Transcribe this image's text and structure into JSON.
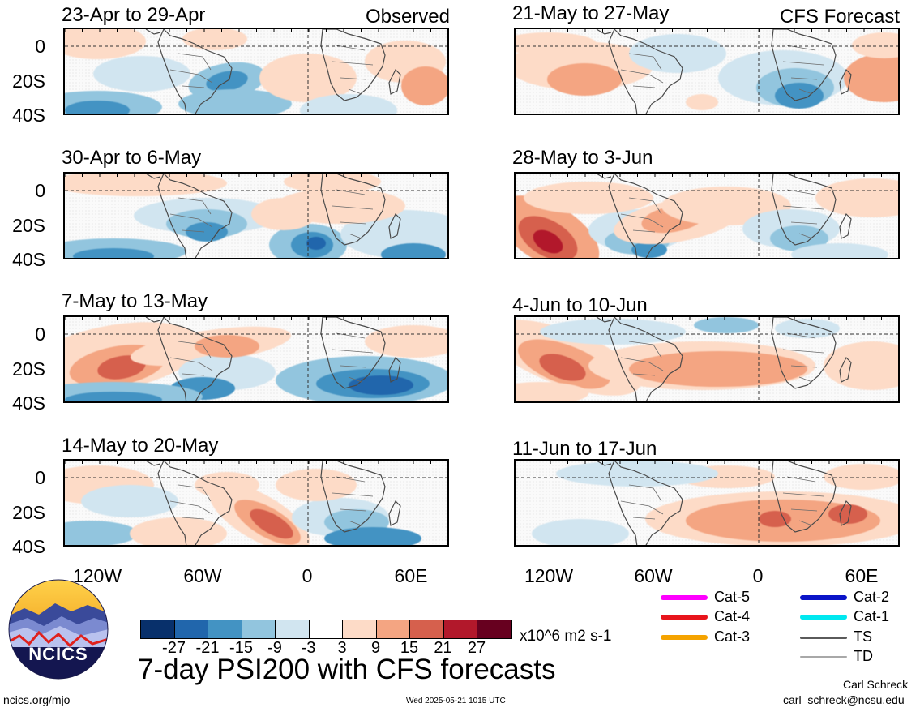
{
  "panels": {
    "p0": {
      "title": "23-Apr to 29-Apr",
      "badge": "Observed"
    },
    "p1": {
      "title": "30-Apr to 6-May"
    },
    "p2": {
      "title": "7-May to 13-May"
    },
    "p3": {
      "title": "14-May to 20-May"
    },
    "p4": {
      "title": "21-May to 27-May",
      "badge": "CFS Forecast"
    },
    "p5": {
      "title": "28-May to 3-Jun"
    },
    "p6": {
      "title": "4-Jun to 10-Jun"
    },
    "p7": {
      "title": "11-Jun to 17-Jun"
    }
  },
  "axes": {
    "lat_labels": [
      "0",
      "20S",
      "40S"
    ],
    "lon_labels": [
      "120W",
      "60W",
      "0",
      "60E"
    ]
  },
  "colorbar": {
    "ticks": [
      "-27",
      "-21",
      "-15",
      "-9",
      "-3",
      "3",
      "9",
      "15",
      "21",
      "27"
    ],
    "colors": [
      "#08306b",
      "#2166ac",
      "#4393c3",
      "#92c5de",
      "#d1e5f0",
      "#ffffff",
      "#fddbc7",
      "#f4a582",
      "#d6604d",
      "#b2182b",
      "#67001f"
    ],
    "units": "x10^6 m2 s-1"
  },
  "storm_legend": {
    "items": [
      {
        "label": "Cat-5",
        "color": "#ff00ff"
      },
      {
        "label": "Cat-4",
        "color": "#e8141c"
      },
      {
        "label": "Cat-3",
        "color": "#f5a300"
      },
      {
        "label": "Cat-2",
        "color": "#0a14c8"
      },
      {
        "label": "Cat-1",
        "color": "#00e8f0"
      },
      {
        "label": "TS",
        "color": "#5a5a5a"
      },
      {
        "label": "TD",
        "color": "#a8a8a8"
      }
    ]
  },
  "logo": {
    "text": "NCICS"
  },
  "footer": {
    "title": "7-day PSI200 with CFS forecasts",
    "url": "ncics.org/mjo",
    "timestamp": "Wed 2025-05-21 1015 UTC",
    "author": "Carl Schreck",
    "email": "carl_schreck@ncsu.edu"
  }
}
